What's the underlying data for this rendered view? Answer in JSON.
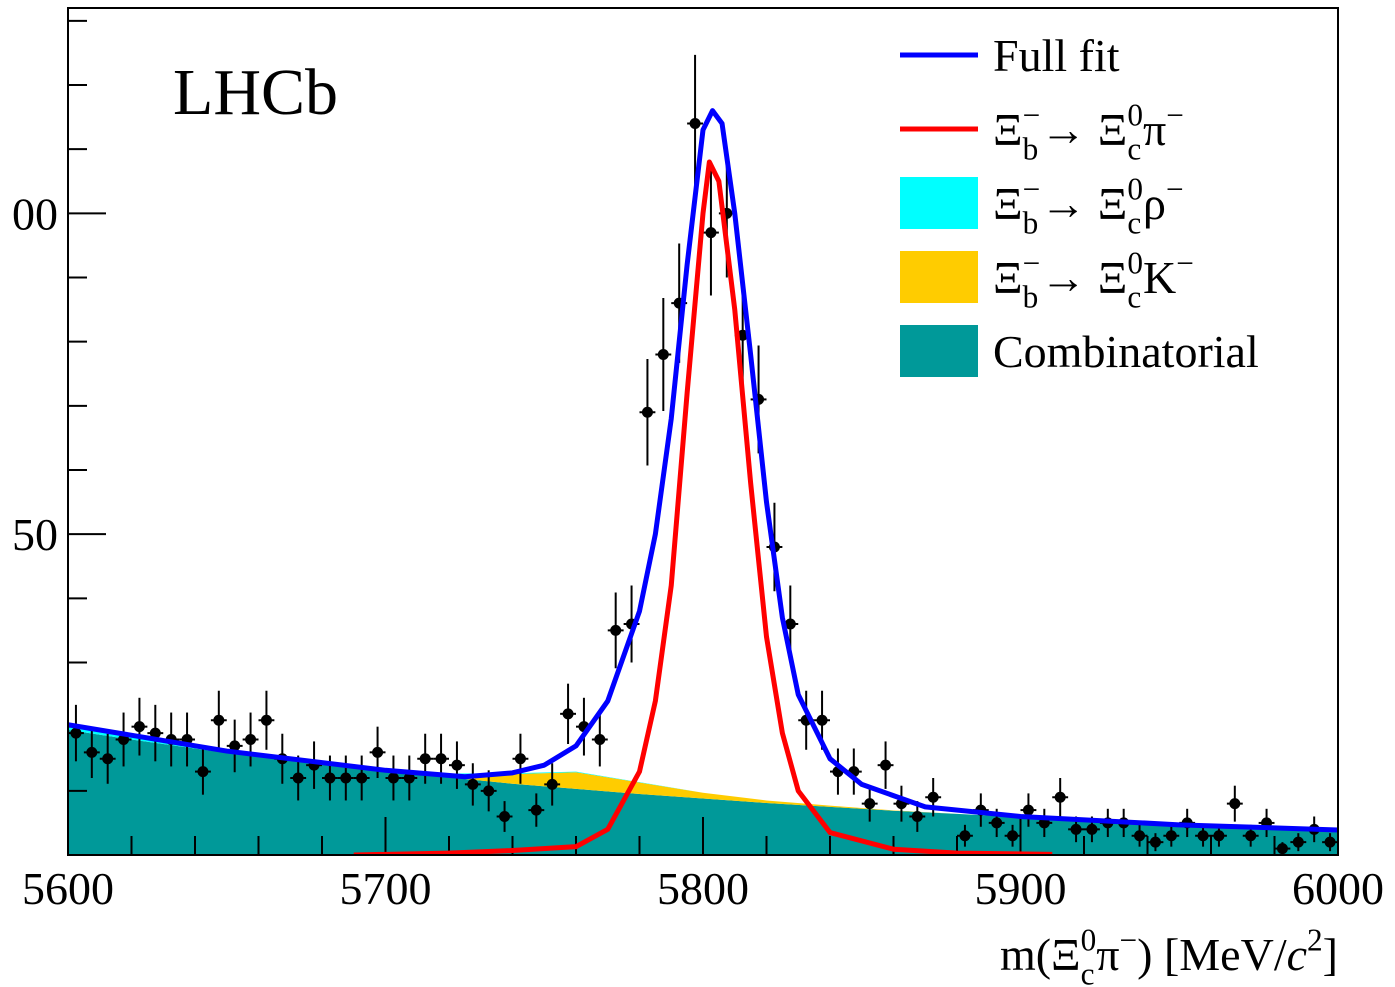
{
  "chart_data": {
    "type": "fit",
    "annotation": "LHCb",
    "x_label": [
      {
        "text": "m(Ξ"
      },
      {
        "sub": "c"
      },
      {
        "sup": "0"
      },
      {
        "text": "π"
      },
      {
        "sup": "−"
      },
      {
        "text": ") [MeV/"
      },
      {
        "italic": "c"
      },
      {
        "sup": "2"
      },
      {
        "text": "]"
      }
    ],
    "xlim": [
      5600,
      6000
    ],
    "xticks": [
      5600,
      5700,
      5800,
      5900,
      6000
    ],
    "xminorticks": [
      5620,
      5640,
      5660,
      5680,
      5720,
      5740,
      5760,
      5780,
      5820,
      5840,
      5860,
      5880,
      5920,
      5940,
      5960,
      5980
    ],
    "ylim": [
      0,
      132
    ],
    "yticks": [
      50,
      {
        "value": 100,
        "label": "00"
      }
    ],
    "yminorticks": [
      10,
      20,
      30,
      40,
      60,
      70,
      80,
      90,
      110,
      120,
      130
    ],
    "data": {
      "color": "#000000",
      "x_error": 2.5,
      "x": [
        5602.5,
        5607.5,
        5612.5,
        5617.5,
        5622.5,
        5627.5,
        5632.5,
        5637.5,
        5642.5,
        5647.5,
        5652.5,
        5657.5,
        5662.5,
        5667.5,
        5672.5,
        5677.5,
        5682.5,
        5687.5,
        5692.5,
        5697.5,
        5702.5,
        5707.5,
        5712.5,
        5717.5,
        5722.5,
        5727.5,
        5732.5,
        5737.5,
        5742.5,
        5747.5,
        5752.5,
        5757.5,
        5762.5,
        5767.5,
        5772.5,
        5777.5,
        5782.5,
        5787.5,
        5792.5,
        5797.5,
        5802.5,
        5807.5,
        5812.5,
        5817.5,
        5822.5,
        5827.5,
        5832.5,
        5837.5,
        5842.5,
        5847.5,
        5852.5,
        5857.5,
        5862.5,
        5867.5,
        5872.5,
        5882.5,
        5887.5,
        5892.5,
        5897.5,
        5902.5,
        5907.5,
        5912.5,
        5917.5,
        5922.5,
        5927.5,
        5932.5,
        5937.5,
        5942.5,
        5947.5,
        5952.5,
        5957.5,
        5962.5,
        5967.5,
        5972.5,
        5977.5,
        5982.5,
        5987.5,
        5992.5,
        5997.5
      ],
      "values": [
        19,
        16,
        15,
        18,
        20,
        19,
        18,
        18,
        13,
        21,
        17,
        18,
        21,
        15,
        12,
        14,
        12,
        12,
        12,
        16,
        12,
        12,
        15,
        15,
        14,
        11,
        10,
        6,
        15,
        7,
        11,
        22,
        20,
        18,
        35,
        36,
        69,
        78,
        86,
        114,
        97,
        100,
        81,
        71,
        48,
        36,
        21,
        21,
        13,
        13,
        8,
        14,
        8,
        6,
        9,
        3,
        7,
        5,
        3,
        7,
        5,
        9,
        4,
        4,
        5,
        5,
        3,
        2,
        3,
        5,
        3,
        3,
        8,
        3,
        5,
        1,
        2,
        4,
        2
      ],
      "errors": [
        4.4,
        4,
        3.9,
        4.2,
        4.5,
        4.4,
        4.2,
        4.2,
        3.6,
        4.6,
        4.1,
        4.2,
        4.6,
        3.9,
        3.5,
        3.7,
        3.5,
        3.5,
        3.5,
        4,
        3.5,
        3.5,
        3.9,
        3.9,
        3.7,
        3.3,
        3.2,
        2.4,
        3.9,
        2.6,
        3.3,
        4.7,
        4.5,
        4.2,
        5.9,
        6,
        8.3,
        8.8,
        9.3,
        10.7,
        9.8,
        10,
        9,
        8.4,
        6.9,
        6,
        4.6,
        4.6,
        3.6,
        3.6,
        2.8,
        3.7,
        2.8,
        2.4,
        3,
        1.7,
        2.6,
        2.2,
        1.7,
        2.6,
        2.2,
        3,
        2,
        2,
        2.2,
        2.2,
        1.7,
        1.4,
        1.7,
        2.2,
        1.7,
        1.7,
        2.8,
        1.7,
        2.2,
        1,
        1.4,
        2,
        1.4
      ]
    },
    "series": [
      {
        "name": [
          {
            "text": "Full fit"
          }
        ],
        "color": "#0000ff",
        "kind": "line",
        "x": [
          5600,
          5650,
          5700,
          5725,
          5740,
          5750,
          5760,
          5770,
          5780,
          5785,
          5790,
          5795,
          5800,
          5803,
          5806,
          5810,
          5815,
          5820,
          5825,
          5830,
          5840,
          5850,
          5870,
          5900,
          5950,
          6000
        ],
        "values": [
          20.3,
          16.2,
          13.2,
          12.2,
          12.8,
          14,
          17,
          24,
          38,
          50,
          68,
          92,
          113,
          116,
          114,
          100,
          78,
          55,
          37,
          25,
          15,
          11,
          7.5,
          6,
          4.7,
          3.9
        ]
      },
      {
        "name": [
          {
            "text": "Ξ"
          },
          {
            "sub": "b"
          },
          {
            "sup": "−"
          },
          {
            "text": "→ Ξ"
          },
          {
            "sub": "c"
          },
          {
            "sup": "0"
          },
          {
            "text": "π"
          },
          {
            "sup": "−"
          }
        ],
        "color": "#ff0000",
        "kind": "line",
        "x": [
          5690,
          5720,
          5740,
          5760,
          5770,
          5780,
          5785,
          5790,
          5795,
          5800,
          5802,
          5805,
          5810,
          5815,
          5820,
          5825,
          5830,
          5840,
          5860,
          5880,
          5910
        ],
        "values": [
          0,
          0.3,
          0.7,
          1.3,
          4,
          13,
          24,
          42,
          72,
          100,
          108,
          105,
          85,
          58,
          34,
          19,
          10,
          3.5,
          0.9,
          0.3,
          0.1
        ]
      },
      {
        "name": [
          {
            "text": "Ξ"
          },
          {
            "sub": "b"
          },
          {
            "sup": "−"
          },
          {
            "text": "→ Ξ"
          },
          {
            "sub": "c"
          },
          {
            "sup": "0"
          },
          {
            "text": "ρ"
          },
          {
            "sup": "−"
          }
        ],
        "color": "#00ffff",
        "kind": "area",
        "x": [
          5600,
          5620,
          5640,
          5660,
          5680,
          5700,
          5720,
          5740,
          5760,
          5780,
          5800,
          5820,
          5840,
          5860,
          5880,
          5900,
          5920,
          5940,
          5960,
          5980,
          6000
        ],
        "values": [
          0.8,
          0.7,
          0.6,
          0.5,
          0.4,
          0.3,
          0.2,
          0.15,
          0.1,
          0.05,
          0,
          0,
          0,
          0,
          0,
          0,
          0,
          0,
          0,
          0,
          0
        ]
      },
      {
        "name": [
          {
            "text": "Ξ"
          },
          {
            "sub": "b"
          },
          {
            "sup": "−"
          },
          {
            "text": "→ Ξ"
          },
          {
            "sub": "c"
          },
          {
            "sup": "0"
          },
          {
            "text": "K"
          },
          {
            "sup": "−"
          }
        ],
        "color": "#ffcc00",
        "kind": "area",
        "x": [
          5600,
          5620,
          5640,
          5660,
          5680,
          5700,
          5720,
          5740,
          5760,
          5780,
          5800,
          5820,
          5840,
          5860,
          5880,
          5900,
          5920,
          5940,
          5960,
          5980,
          6000
        ],
        "values": [
          0,
          0,
          0,
          0,
          0,
          0.1,
          0.4,
          1.5,
          2.6,
          1.8,
          0.9,
          0.4,
          0.2,
          0.05,
          0,
          0,
          0,
          0,
          0,
          0,
          0
        ]
      },
      {
        "name": [
          {
            "text": "Combinatorial"
          }
        ],
        "color": "#009999",
        "kind": "area",
        "x": [
          5600,
          5620,
          5640,
          5660,
          5680,
          5700,
          5720,
          5740,
          5760,
          5780,
          5800,
          5820,
          5840,
          5860,
          5880,
          5900,
          5920,
          5940,
          5960,
          5980,
          6000
        ],
        "values": [
          19.5,
          18,
          16.6,
          15.3,
          14.2,
          13.1,
          12.1,
          11.1,
          10.3,
          9.5,
          8.8,
          8.1,
          7.5,
          6.9,
          6.4,
          5.9,
          5.4,
          5,
          4.6,
          4.3,
          3.9
        ]
      }
    ]
  }
}
